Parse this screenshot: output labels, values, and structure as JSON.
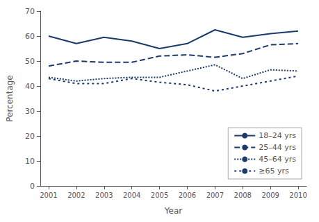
{
  "chart_data": {
    "type": "line",
    "x": [
      2001,
      2002,
      2003,
      2004,
      2005,
      2006,
      2007,
      2008,
      2009,
      2010
    ],
    "series": [
      {
        "name": "18–24 yrs",
        "color": "#1a3a6b",
        "line_style": "solid",
        "values": [
          60.0,
          57.0,
          59.5,
          58.0,
          55.0,
          57.0,
          62.5,
          59.5,
          61.0,
          62.0
        ]
      },
      {
        "name": "25–44 yrs",
        "color": "#1a3a6b",
        "line_style": "dashed",
        "values": [
          48.0,
          50.0,
          49.5,
          49.5,
          52.0,
          52.5,
          51.5,
          53.0,
          56.5,
          57.0
        ]
      },
      {
        "name": "45–64 yrs",
        "color": "#1a3a6b",
        "line_style": "dotted",
        "values": [
          43.5,
          42.0,
          43.0,
          43.5,
          43.5,
          46.0,
          48.5,
          43.0,
          46.5,
          46.0
        ]
      },
      {
        "name": "≥65 yrs",
        "color": "#1a3a6b",
        "line_style": "short-dashed",
        "values": [
          43.0,
          41.0,
          41.0,
          43.0,
          41.5,
          40.5,
          38.0,
          40.0,
          42.0,
          44.0
        ]
      }
    ],
    "xlabel": "Year",
    "ylabel": "Percentage",
    "xlim": [
      2000.7,
      2010.3
    ],
    "xticks": [
      2001,
      2002,
      2003,
      2004,
      2005,
      2006,
      2007,
      2008,
      2009,
      2010
    ],
    "ylim": [
      0,
      70
    ],
    "yticks": [
      0,
      10,
      20,
      30,
      40,
      50,
      60,
      70
    ],
    "grid": false,
    "legend": "lower right"
  }
}
